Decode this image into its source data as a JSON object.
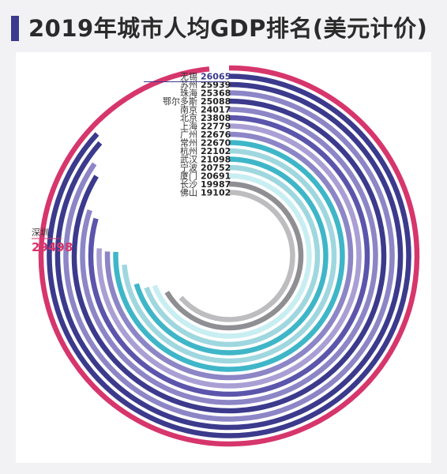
{
  "title": "2019年城市人均GDP排名(美元计价)",
  "chart_data": {
    "type": "radial-bar",
    "title": "2019年城市人均GDP排名(美元计价)",
    "categories": [
      "深圳",
      "无锡",
      "苏州",
      "珠海",
      "鄂尔多斯",
      "南京",
      "北京",
      "上海",
      "广州",
      "常州",
      "杭州",
      "武汉",
      "宁波",
      "厦门",
      "长沙",
      "佛山"
    ],
    "values": [
      29498,
      26065,
      25939,
      25368,
      25088,
      24017,
      23808,
      22779,
      22676,
      22670,
      22102,
      21098,
      20752,
      20691,
      19987,
      19102
    ],
    "value_labels": [
      "29498",
      "26065",
      "25939",
      "25368",
      "25088",
      "24017",
      "23808",
      "22779",
      "22676",
      "22670",
      "22102",
      "21098",
      "20752",
      "20691",
      "19987",
      "19102"
    ],
    "colors": [
      "#d6366c",
      "#3b3a8c",
      "#3b3a8c",
      "#8c85c6",
      "#3b3a8c",
      "#8c85c6",
      "#5c55ac",
      "#a99fd4",
      "#8c85c6",
      "#3fb6c8",
      "#9fd7df",
      "#3fb6c8",
      "#9fd7df",
      "#c8eef2",
      "#8f8f93",
      "#bdbdc0"
    ]
  }
}
